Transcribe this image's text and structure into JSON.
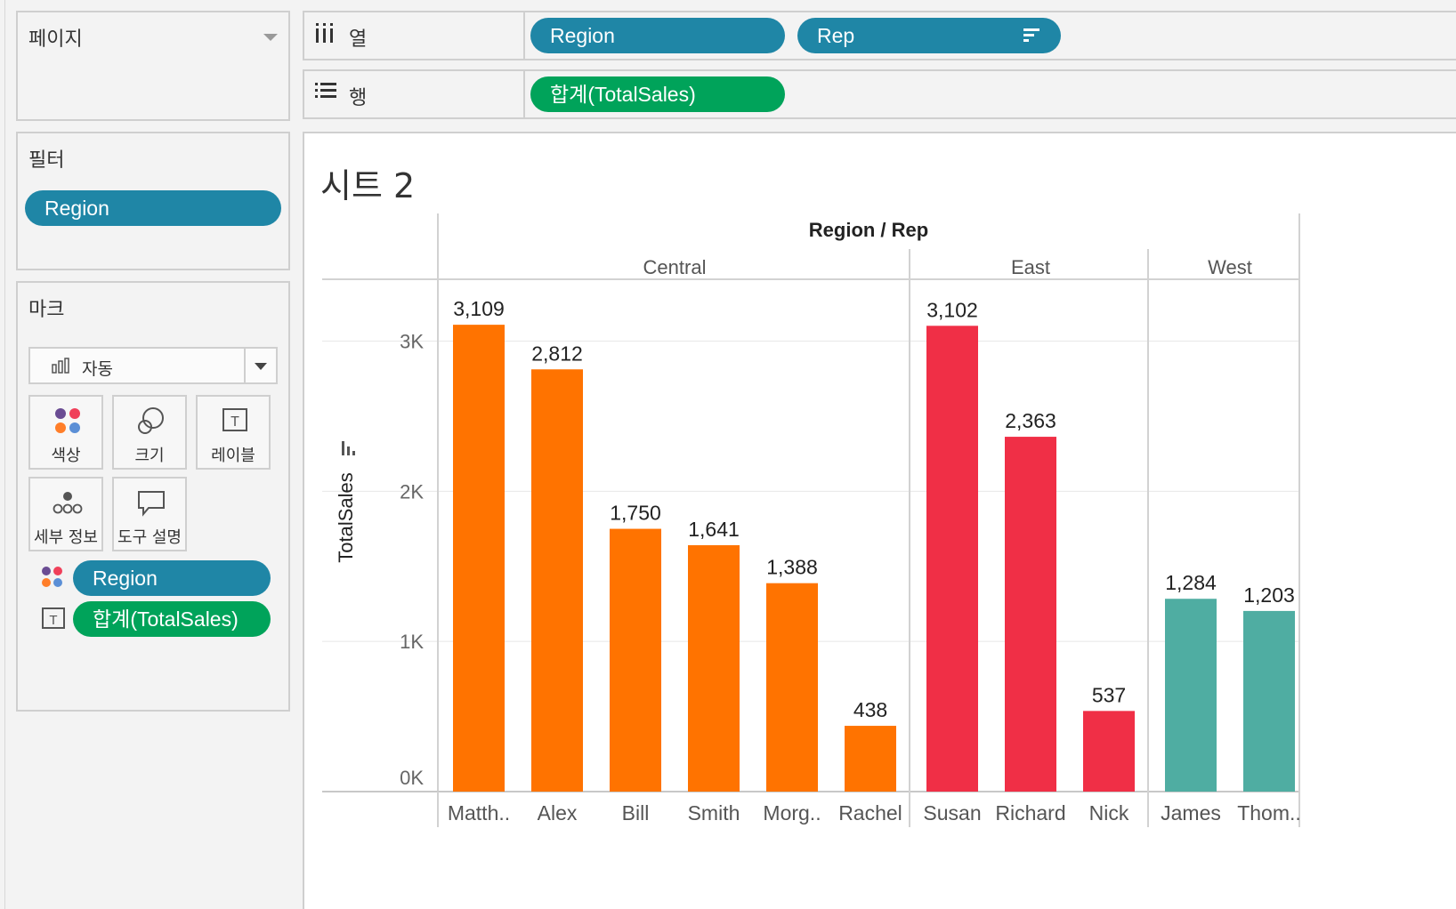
{
  "panels": {
    "pages": {
      "title": "페이지"
    },
    "filters": {
      "title": "필터",
      "pill": "Region"
    },
    "marks": {
      "title": "마크",
      "type_label": "자동",
      "cards": [
        "색상",
        "크기",
        "레이블",
        "세부 정보",
        "도구 설명"
      ],
      "color_pill": "Region",
      "label_pill": "합계(TotalSales)"
    }
  },
  "shelves": {
    "columns": {
      "label": "열",
      "pills": [
        "Region",
        "Rep"
      ]
    },
    "rows": {
      "label": "행",
      "pills": [
        "합계(TotalSales)"
      ]
    }
  },
  "sheet": {
    "title": "시트 2"
  },
  "colors": {
    "Central": "#ff7300",
    "East": "#f02f46",
    "West": "#4fada2",
    "pill_blue": "#1f86a6",
    "pill_green": "#00a35a"
  },
  "chart_data": {
    "type": "bar",
    "header": "Region / Rep",
    "ylabel": "TotalSales",
    "ylim": [
      0,
      3400
    ],
    "yticks": [
      {
        "v": 0,
        "label": "0K"
      },
      {
        "v": 1000,
        "label": "1K"
      },
      {
        "v": 2000,
        "label": "2K"
      },
      {
        "v": 3000,
        "label": "3K"
      }
    ],
    "groups": [
      {
        "name": "Central",
        "bars": [
          {
            "rep": "Matth..",
            "value": 3109,
            "label": "3,109"
          },
          {
            "rep": "Alex",
            "value": 2812,
            "label": "2,812"
          },
          {
            "rep": "Bill",
            "value": 1750,
            "label": "1,750"
          },
          {
            "rep": "Smith",
            "value": 1641,
            "label": "1,641"
          },
          {
            "rep": "Morg..",
            "value": 1388,
            "label": "1,388"
          },
          {
            "rep": "Rachel",
            "value": 438,
            "label": "438"
          }
        ]
      },
      {
        "name": "East",
        "bars": [
          {
            "rep": "Susan",
            "value": 3102,
            "label": "3,102"
          },
          {
            "rep": "Richard",
            "value": 2363,
            "label": "2,363"
          },
          {
            "rep": "Nick",
            "value": 537,
            "label": "537"
          }
        ]
      },
      {
        "name": "West",
        "bars": [
          {
            "rep": "James",
            "value": 1284,
            "label": "1,284"
          },
          {
            "rep": "Thom..",
            "value": 1203,
            "label": "1,203"
          }
        ]
      }
    ]
  }
}
